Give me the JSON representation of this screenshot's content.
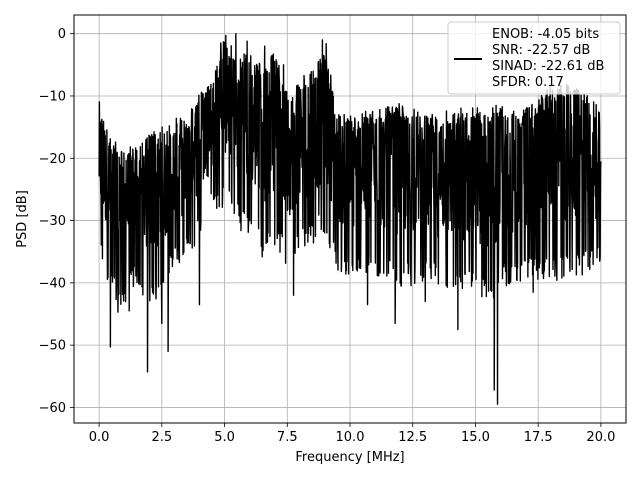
{
  "chart_data": {
    "type": "line",
    "xlabel": "Frequency [MHz]",
    "ylabel": "PSD [dB]",
    "xlim": [
      -1.0,
      21.0
    ],
    "ylim": [
      -62.5,
      3.0
    ],
    "xticks": [
      0.0,
      2.5,
      5.0,
      7.5,
      10.0,
      12.5,
      15.0,
      17.5,
      20.0
    ],
    "xtick_labels": [
      "0.0",
      "2.5",
      "5.0",
      "7.5",
      "10.0",
      "12.5",
      "15.0",
      "17.5",
      "20.0"
    ],
    "yticks": [
      0,
      -10,
      -20,
      -30,
      -40,
      -50,
      -60
    ],
    "ytick_labels": [
      "0",
      "−10",
      "−20",
      "−30",
      "−40",
      "−50",
      "−60"
    ],
    "grid": true,
    "legend_position": "top-right",
    "series": [
      {
        "name": "",
        "color": "#000000",
        "legend_lines": [
          "ENOB: -4.05 bits",
          "SNR: -22.57 dB",
          "SINAD: -22.61 dB",
          "SFDR: 0.17"
        ],
        "envelope": {
          "x": [
            0.0,
            0.5,
            1.0,
            1.5,
            2.0,
            2.5,
            3.0,
            3.5,
            4.0,
            4.5,
            5.0,
            5.5,
            6.0,
            6.5,
            7.0,
            7.5,
            8.0,
            8.5,
            9.0,
            9.5,
            10.0,
            11.0,
            12.0,
            13.0,
            14.0,
            15.0,
            15.5,
            16.0,
            17.0,
            18.0,
            19.0,
            20.0
          ],
          "upper": [
            -11,
            -17,
            -19,
            -18,
            -16,
            -15,
            -14,
            -14,
            -9,
            -8,
            -0.5,
            -3,
            -3,
            -5,
            -3,
            -9,
            -7,
            -6,
            -2,
            -12,
            -13,
            -12,
            -11,
            -13,
            -12,
            -11,
            -12,
            -11,
            -12,
            -8,
            -8,
            -12
          ],
          "lower": [
            -36,
            -42,
            -44,
            -40,
            -44,
            -42,
            -38,
            -36,
            -33,
            -29,
            -28,
            -31,
            -33,
            -36,
            -34,
            -38,
            -35,
            -34,
            -32,
            -38,
            -40,
            -39,
            -41,
            -40,
            -42,
            -42,
            -44,
            -41,
            -40,
            -40,
            -39,
            -38
          ]
        },
        "dips": [
          {
            "x": 0.45,
            "y": -50.3
          },
          {
            "x": 1.93,
            "y": -54.3
          },
          {
            "x": 2.75,
            "y": -51.0
          },
          {
            "x": 0.75,
            "y": -44.7
          },
          {
            "x": 1.2,
            "y": -44.5
          },
          {
            "x": 2.5,
            "y": -46.5
          },
          {
            "x": 4.0,
            "y": -43.5
          },
          {
            "x": 7.75,
            "y": -42.0
          },
          {
            "x": 10.7,
            "y": -43.5
          },
          {
            "x": 11.8,
            "y": -46.5
          },
          {
            "x": 13.0,
            "y": -43.0
          },
          {
            "x": 14.3,
            "y": -47.5
          },
          {
            "x": 15.75,
            "y": -57.2
          },
          {
            "x": 15.88,
            "y": -59.5
          },
          {
            "x": 17.3,
            "y": -41.5
          },
          {
            "x": 19.95,
            "y": -36.5
          }
        ],
        "spikes": [
          {
            "x": 4.85,
            "y": -1.5
          },
          {
            "x": 5.05,
            "y": -0.3
          },
          {
            "x": 5.45,
            "y": 0.0
          },
          {
            "x": 5.9,
            "y": -1.2
          },
          {
            "x": 6.6,
            "y": -2.0
          },
          {
            "x": 7.35,
            "y": -5.0
          },
          {
            "x": 8.9,
            "y": -1.0
          },
          {
            "x": 9.05,
            "y": -1.6
          },
          {
            "x": 17.85,
            "y": -9.0
          },
          {
            "x": 18.5,
            "y": -10.0
          }
        ]
      }
    ]
  }
}
